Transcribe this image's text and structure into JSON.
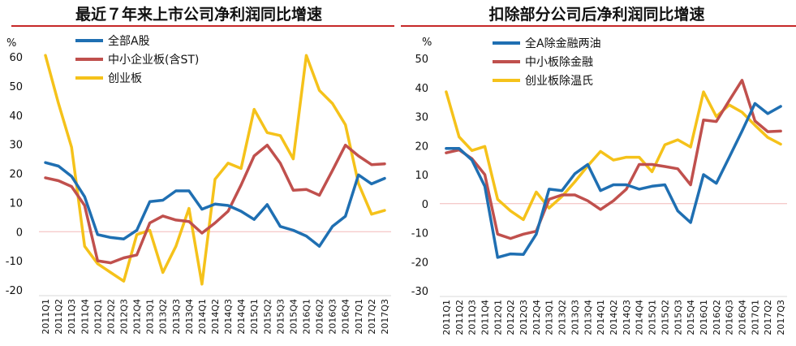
{
  "chart_data": [
    {
      "type": "line",
      "title": "最近７年来上市公司净利润同比增速",
      "unit_label": "%",
      "ylim": [
        -20,
        60
      ],
      "yticks": [
        -20,
        -10,
        0,
        10,
        20,
        30,
        40,
        50,
        60
      ],
      "grid": false,
      "legend_position": "top-center",
      "categories": [
        "2011Q1",
        "2011Q2",
        "2011Q3",
        "2011Q4",
        "2012Q1",
        "2012Q2",
        "2012Q3",
        "2012Q4",
        "2013Q1",
        "2013Q2",
        "2013Q3",
        "2013Q4",
        "2014Q1",
        "2014Q2",
        "2014Q3",
        "2014Q4",
        "2015Q1",
        "2015Q2",
        "2015Q3",
        "2015Q4",
        "2016Q1",
        "2016Q2",
        "2016Q3",
        "2016Q4",
        "2017Q1",
        "2017Q2",
        "2017Q3"
      ],
      "series": [
        {
          "name": "全部A股",
          "color": "#1f6fb2",
          "values": [
            23.7,
            22.5,
            19.0,
            12.0,
            -1.0,
            -2.0,
            -2.5,
            0.5,
            10.3,
            10.8,
            14.0,
            14.0,
            7.7,
            9.5,
            9.0,
            7.0,
            4.2,
            9.3,
            1.8,
            0.5,
            -1.5,
            -5.0,
            1.8,
            5.3,
            19.5,
            16.4,
            18.3
          ]
        },
        {
          "name": "中小企业板(含ST)",
          "color": "#c0504d",
          "values": [
            18.5,
            17.5,
            15.5,
            9.0,
            -10.0,
            -10.7,
            -9.0,
            -8.0,
            3.0,
            5.4,
            4.0,
            3.5,
            -0.5,
            3.0,
            7.0,
            16.0,
            26.0,
            29.7,
            23.5,
            14.2,
            14.5,
            12.5,
            21.0,
            29.7,
            26.0,
            23.0,
            23.3
          ]
        },
        {
          "name": "创业板",
          "color": "#f5c21a",
          "values": [
            60.5,
            44.0,
            29.0,
            -5.0,
            -11.0,
            -14.0,
            -17.0,
            -1.0,
            0.5,
            -14.0,
            -5.0,
            8.0,
            -18.0,
            18.0,
            23.5,
            21.7,
            42.0,
            34.0,
            33.0,
            25.0,
            60.5,
            48.5,
            44.0,
            36.7,
            16.5,
            6.0,
            7.3
          ]
        }
      ]
    },
    {
      "type": "line",
      "title": "扣除部分公司后净利润同比增速",
      "unit_label": "%",
      "ylim": [
        -30,
        50
      ],
      "yticks": [
        -30,
        -20,
        -10,
        0,
        10,
        20,
        30,
        40,
        50
      ],
      "grid": false,
      "legend_position": "top-center",
      "categories": [
        "2011Q1",
        "2011Q2",
        "2011Q3",
        "2011Q4",
        "2012Q1",
        "2012Q2",
        "2012Q3",
        "2012Q4",
        "2013Q1",
        "2013Q2",
        "2013Q3",
        "2013Q4",
        "2014Q1",
        "2014Q2",
        "2014Q3",
        "2014Q4",
        "2015Q1",
        "2015Q2",
        "2015Q3",
        "2015Q4",
        "2016Q1",
        "2016Q2",
        "2016Q3",
        "2016Q4",
        "2017Q1",
        "2017Q2",
        "2017Q3"
      ],
      "series": [
        {
          "name": "全A除金融两油",
          "color": "#1f6fb2",
          "values": [
            19.0,
            19.0,
            15.0,
            6.0,
            -18.5,
            -17.3,
            -17.5,
            -10.5,
            5.0,
            4.5,
            10.3,
            13.5,
            4.5,
            6.5,
            6.5,
            5.0,
            6.0,
            6.5,
            -2.5,
            -6.5,
            10.0,
            7.0,
            16.0,
            25.0,
            34.5,
            31.0,
            33.5
          ]
        },
        {
          "name": "中小板除金融",
          "color": "#c0504d",
          "values": [
            17.5,
            18.5,
            15.5,
            10.0,
            -10.5,
            -12.0,
            -10.5,
            -9.5,
            1.5,
            3.0,
            3.0,
            1.0,
            -2.0,
            1.0,
            5.0,
            13.5,
            13.5,
            12.8,
            12.0,
            6.5,
            28.8,
            28.3,
            35.5,
            42.5,
            28.5,
            24.8,
            25.0
          ]
        },
        {
          "name": "创业板除温氏",
          "color": "#f5c21a",
          "values": [
            38.5,
            23.0,
            18.3,
            19.7,
            1.5,
            -2.5,
            -5.5,
            4.0,
            -1.5,
            2.5,
            7.5,
            13.0,
            18.0,
            15.0,
            16.0,
            16.0,
            11.0,
            20.3,
            22.0,
            19.5,
            38.5,
            30.0,
            34.0,
            31.5,
            27.0,
            22.8,
            20.5
          ]
        }
      ]
    }
  ]
}
